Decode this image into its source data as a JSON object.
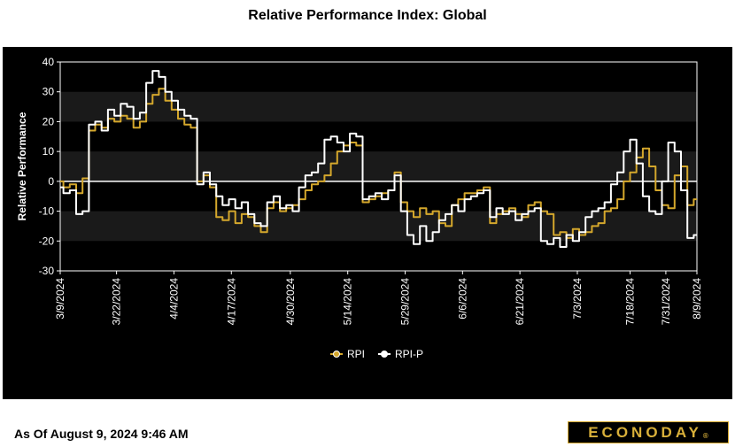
{
  "page": {
    "title": "Relative Performance Index: Global",
    "as_of": "As Of August 9, 2024 9:46 AM",
    "logo": "ECONODAY",
    "logo_mark": "®"
  },
  "chart_data": {
    "type": "line",
    "title": "Relative Performance Index: Global",
    "ylabel": "Relative Performance",
    "xlabel": "",
    "ylim": [
      -30,
      40
    ],
    "yticks": [
      40,
      30,
      20,
      10,
      0,
      -10,
      -20,
      -30
    ],
    "x_tick_labels": [
      "3/9/2024",
      "3/22/2024",
      "4/4/2024",
      "4/17/2024",
      "4/30/2024",
      "5/14/2024",
      "5/29/2024",
      "6/6/2024",
      "6/21/2024",
      "7/3/2024",
      "7/18/2024",
      "7/31/2024",
      "8/9/2024"
    ],
    "x_tick_fraction": [
      0.0,
      0.0885,
      0.1786,
      0.2688,
      0.3614,
      0.4516,
      0.5417,
      0.6319,
      0.722,
      0.8122,
      0.895,
      0.9512,
      1.0
    ],
    "legend_position": "bottom-center",
    "banding": "alternating dark grey horizontal bands",
    "colors": {
      "RPI": "#d4a72c",
      "RPI-P": "#ffffff",
      "zero_line": "#ffffff",
      "background": "#000000",
      "band": "#1a1a1a"
    },
    "series": [
      {
        "name": "RPI",
        "x_fraction": [
          0.0,
          0.01,
          0.02,
          0.03,
          0.04,
          0.05,
          0.06,
          0.07,
          0.08,
          0.09,
          0.1,
          0.11,
          0.12,
          0.13,
          0.14,
          0.15,
          0.16,
          0.17,
          0.18,
          0.19,
          0.2,
          0.21,
          0.22,
          0.23,
          0.24,
          0.25,
          0.26,
          0.27,
          0.28,
          0.29,
          0.3,
          0.31,
          0.32,
          0.33,
          0.34,
          0.35,
          0.36,
          0.37,
          0.38,
          0.39,
          0.4,
          0.41,
          0.42,
          0.43,
          0.44,
          0.45,
          0.46,
          0.47,
          0.48,
          0.49,
          0.5,
          0.51,
          0.52,
          0.53,
          0.54,
          0.55,
          0.56,
          0.57,
          0.58,
          0.59,
          0.6,
          0.61,
          0.62,
          0.63,
          0.64,
          0.65,
          0.66,
          0.67,
          0.68,
          0.69,
          0.7,
          0.71,
          0.72,
          0.73,
          0.74,
          0.75,
          0.76,
          0.77,
          0.78,
          0.79,
          0.8,
          0.81,
          0.82,
          0.83,
          0.84,
          0.85,
          0.86,
          0.87,
          0.88,
          0.89,
          0.9,
          0.91,
          0.92,
          0.93,
          0.94,
          0.95,
          0.96,
          0.97,
          0.98,
          0.99,
          1.0
        ],
        "values": [
          0,
          -2,
          -1,
          -4,
          1,
          17,
          19,
          18,
          21,
          20,
          22,
          21,
          18,
          20,
          26,
          29,
          31,
          27,
          24,
          21,
          19,
          18,
          0,
          2,
          -2,
          -12,
          -13,
          -10,
          -14,
          -11,
          -12,
          -15,
          -17,
          -9,
          -7,
          -10,
          -9,
          -8,
          -6,
          -3,
          -1,
          0,
          2,
          6,
          10,
          12,
          13,
          12,
          -7,
          -6,
          -5,
          -4,
          -3,
          3,
          -7,
          -10,
          -12,
          -9,
          -11,
          -10,
          -14,
          -15,
          -8,
          -6,
          -4,
          -4,
          -3,
          -2,
          -14,
          -11,
          -10,
          -9,
          -11,
          -12,
          -8,
          -7,
          -10,
          -11,
          -18,
          -17,
          -19,
          -16,
          -18,
          -17,
          -15,
          -14,
          -10,
          -9,
          -6,
          0,
          3,
          8,
          11,
          5,
          -3,
          -8,
          -9,
          2,
          5,
          -8,
          -6
        ],
        "note": "daily values approximated from chart"
      },
      {
        "name": "RPI-P",
        "x_fraction": [
          0.0,
          0.01,
          0.02,
          0.03,
          0.04,
          0.05,
          0.06,
          0.07,
          0.08,
          0.09,
          0.1,
          0.11,
          0.12,
          0.13,
          0.14,
          0.15,
          0.16,
          0.17,
          0.18,
          0.19,
          0.2,
          0.21,
          0.22,
          0.23,
          0.24,
          0.25,
          0.26,
          0.27,
          0.28,
          0.29,
          0.3,
          0.31,
          0.32,
          0.33,
          0.34,
          0.35,
          0.36,
          0.37,
          0.38,
          0.39,
          0.4,
          0.41,
          0.42,
          0.43,
          0.44,
          0.45,
          0.46,
          0.47,
          0.48,
          0.49,
          0.5,
          0.51,
          0.52,
          0.53,
          0.54,
          0.55,
          0.56,
          0.57,
          0.58,
          0.59,
          0.6,
          0.61,
          0.62,
          0.63,
          0.64,
          0.65,
          0.66,
          0.67,
          0.68,
          0.69,
          0.7,
          0.71,
          0.72,
          0.73,
          0.74,
          0.75,
          0.76,
          0.77,
          0.78,
          0.79,
          0.8,
          0.81,
          0.82,
          0.83,
          0.84,
          0.85,
          0.86,
          0.87,
          0.88,
          0.89,
          0.9,
          0.91,
          0.92,
          0.93,
          0.94,
          0.95,
          0.96,
          0.97,
          0.98,
          0.99,
          1.0
        ],
        "values": [
          -2,
          -4,
          -3,
          -11,
          -10,
          19,
          20,
          17,
          24,
          22,
          26,
          25,
          21,
          23,
          33,
          37,
          35,
          30,
          27,
          24,
          22,
          21,
          -1,
          3,
          -1,
          -5,
          -8,
          -6,
          -9,
          -7,
          -11,
          -14,
          -15,
          -7,
          -5,
          -9,
          -8,
          -10,
          -2,
          2,
          3,
          6,
          14,
          15,
          13,
          10,
          16,
          15,
          -6,
          -5,
          -4,
          -6,
          -3,
          2,
          -10,
          -18,
          -21,
          -15,
          -20,
          -17,
          -13,
          -11,
          -8,
          -10,
          -6,
          -5,
          -4,
          -3,
          -12,
          -9,
          -11,
          -10,
          -13,
          -11,
          -10,
          -9,
          -20,
          -21,
          -19,
          -22,
          -18,
          -20,
          -17,
          -12,
          -10,
          -9,
          -7,
          -1,
          3,
          10,
          14,
          6,
          -5,
          -10,
          -11,
          0,
          13,
          10,
          -3,
          -19,
          -18
        ],
        "note": "daily values approximated from chart"
      }
    ]
  }
}
